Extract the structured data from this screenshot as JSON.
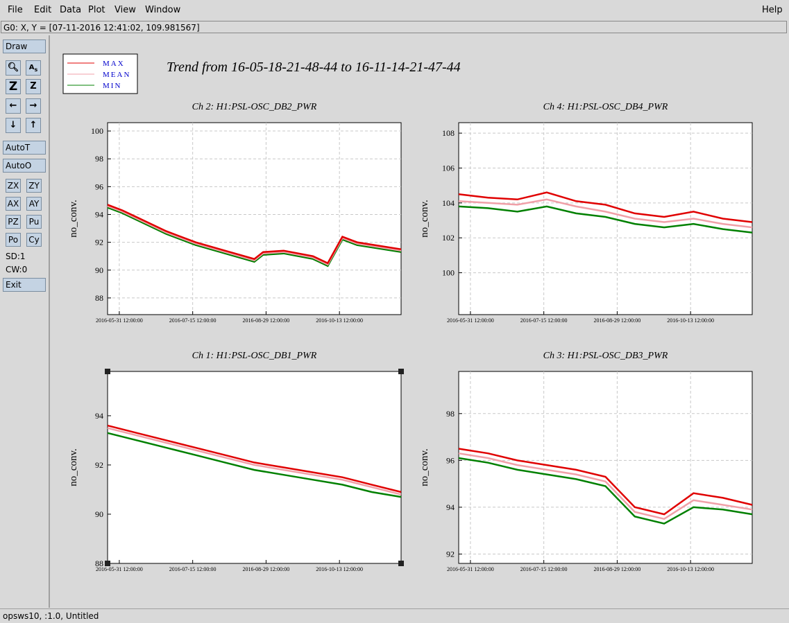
{
  "menu": {
    "file": "File",
    "edit": "Edit",
    "data": "Data",
    "plot": "Plot",
    "view": "View",
    "window": "Window",
    "help": "Help"
  },
  "coord_readout": "G0: X, Y = [07-11-2016 12:41:02, 109.981567]",
  "toolbar": {
    "draw": "Draw",
    "autot": "AutoT",
    "autoo": "AutoO",
    "zx": "ZX",
    "zy": "ZY",
    "ax": "AX",
    "ay": "AY",
    "pz": "PZ",
    "pu": "Pu",
    "po": "Po",
    "cy": "Cy",
    "sd": "SD:1",
    "cw": "CW:0",
    "exit": "Exit",
    "icons": [
      "magnify-icon",
      "text-a-icon",
      "zoom-z-bold-icon",
      "zoom-z-icon",
      "arrow-left-icon",
      "arrow-right-icon",
      "arrow-down-icon",
      "arrow-up-icon"
    ]
  },
  "status": "opsws10, :1.0, Untitled",
  "legend": [
    {
      "label": "MAX",
      "color": "#e00000"
    },
    {
      "label": "MEAN",
      "color": "#f0a0a8"
    },
    {
      "label": "MIN",
      "color": "#008000"
    }
  ],
  "main_title": "Trend from 16-05-18-21-48-44 to 16-11-14-21-47-44",
  "chart_data": [
    {
      "type": "line",
      "title": "Ch 2: H1:PSL-OSC_DB2_PWR",
      "ylabel": "no_conv.",
      "x_ticks": [
        "2016-05-31 12:00:00",
        "2016-07-15 12:00:00",
        "2016-08-29 12:00:00",
        "2016-10-13 12:00:00"
      ],
      "y_ticks": [
        88,
        90,
        92,
        94,
        96,
        98,
        100
      ],
      "ylim": [
        86.8,
        100.6
      ],
      "grid": true,
      "series": [
        {
          "name": "MAX",
          "x": [
            0,
            0.05,
            0.1,
            0.2,
            0.3,
            0.4,
            0.5,
            0.53,
            0.6,
            0.7,
            0.75,
            0.8,
            0.85,
            1
          ],
          "values": [
            94.7,
            94.3,
            93.8,
            92.8,
            92.0,
            91.4,
            90.8,
            91.3,
            91.4,
            91.0,
            90.5,
            92.4,
            92.0,
            91.5
          ]
        },
        {
          "name": "MEAN",
          "x": [
            0,
            0.05,
            0.1,
            0.2,
            0.3,
            0.4,
            0.5,
            0.53,
            0.6,
            0.7,
            0.75,
            0.8,
            0.85,
            1
          ],
          "values": [
            94.6,
            94.2,
            93.7,
            92.7,
            91.9,
            91.3,
            90.7,
            91.2,
            91.3,
            90.9,
            90.4,
            92.3,
            91.9,
            91.4
          ]
        },
        {
          "name": "MIN",
          "x": [
            0,
            0.05,
            0.1,
            0.2,
            0.3,
            0.4,
            0.5,
            0.53,
            0.6,
            0.7,
            0.75,
            0.8,
            0.85,
            1
          ],
          "values": [
            94.5,
            94.1,
            93.6,
            92.6,
            91.8,
            91.2,
            90.6,
            91.1,
            91.2,
            90.8,
            90.3,
            92.2,
            91.8,
            91.3
          ]
        }
      ]
    },
    {
      "type": "line",
      "title": "Ch 4: H1:PSL-OSC_DB4_PWR",
      "ylabel": "no_conv.",
      "x_ticks": [
        "2016-05-31 12:00:00",
        "2016-07-15 12:00:00",
        "2016-08-29 12:00:00",
        "2016-10-13 12:00:00"
      ],
      "y_ticks": [
        100,
        102,
        104,
        106,
        108
      ],
      "ylim": [
        97.6,
        108.6
      ],
      "grid": true,
      "series": [
        {
          "name": "MAX",
          "x": [
            0,
            0.1,
            0.2,
            0.3,
            0.4,
            0.5,
            0.6,
            0.7,
            0.8,
            0.9,
            1
          ],
          "values": [
            104.5,
            104.3,
            104.2,
            104.6,
            104.1,
            103.9,
            103.4,
            103.2,
            103.5,
            103.1,
            102.9
          ]
        },
        {
          "name": "MEAN",
          "x": [
            0,
            0.1,
            0.2,
            0.3,
            0.4,
            0.5,
            0.6,
            0.7,
            0.8,
            0.9,
            1
          ],
          "values": [
            104.1,
            104.0,
            103.9,
            104.2,
            103.8,
            103.5,
            103.1,
            102.9,
            103.1,
            102.8,
            102.6
          ]
        },
        {
          "name": "MIN",
          "x": [
            0,
            0.1,
            0.2,
            0.3,
            0.4,
            0.5,
            0.6,
            0.7,
            0.8,
            0.9,
            1
          ],
          "values": [
            103.8,
            103.7,
            103.5,
            103.8,
            103.4,
            103.2,
            102.8,
            102.6,
            102.8,
            102.5,
            102.3
          ]
        }
      ]
    },
    {
      "type": "line",
      "title": "Ch 1: H1:PSL-OSC_DB1_PWR",
      "ylabel": "no_conv.",
      "x_ticks": [
        "2016-05-31 12:00:00",
        "2016-07-15 12:00:00",
        "2016-08-29 12:00:00",
        "2016-10-13 12:00:00"
      ],
      "y_ticks": [
        88,
        90,
        92,
        94
      ],
      "ylim": [
        88,
        95.8
      ],
      "grid": false,
      "series": [
        {
          "name": "MAX",
          "x": [
            0,
            0.1,
            0.2,
            0.3,
            0.4,
            0.5,
            0.6,
            0.7,
            0.8,
            0.9,
            1
          ],
          "values": [
            93.6,
            93.3,
            93.0,
            92.7,
            92.4,
            92.1,
            91.9,
            91.7,
            91.5,
            91.2,
            90.9
          ]
        },
        {
          "name": "MEAN",
          "x": [
            0,
            0.1,
            0.2,
            0.3,
            0.4,
            0.5,
            0.6,
            0.7,
            0.8,
            0.9,
            1
          ],
          "values": [
            93.5,
            93.2,
            92.9,
            92.6,
            92.3,
            92.0,
            91.8,
            91.6,
            91.4,
            91.1,
            90.8
          ]
        },
        {
          "name": "MIN",
          "x": [
            0,
            0.1,
            0.2,
            0.3,
            0.4,
            0.5,
            0.6,
            0.7,
            0.8,
            0.9,
            1
          ],
          "values": [
            93.3,
            93.0,
            92.7,
            92.4,
            92.1,
            91.8,
            91.6,
            91.4,
            91.2,
            90.9,
            90.7
          ]
        }
      ]
    },
    {
      "type": "line",
      "title": "Ch 3: H1:PSL-OSC_DB3_PWR",
      "ylabel": "no_conv.",
      "x_ticks": [
        "2016-05-31 12:00:00",
        "2016-07-15 12:00:00",
        "2016-08-29 12:00:00",
        "2016-10-13 12:00:00"
      ],
      "y_ticks": [
        92,
        94,
        96,
        98
      ],
      "ylim": [
        91.6,
        99.8
      ],
      "grid": true,
      "series": [
        {
          "name": "MAX",
          "x": [
            0,
            0.1,
            0.2,
            0.3,
            0.4,
            0.5,
            0.6,
            0.7,
            0.8,
            0.9,
            1
          ],
          "values": [
            96.5,
            96.3,
            96.0,
            95.8,
            95.6,
            95.3,
            94.0,
            93.7,
            94.6,
            94.4,
            94.1
          ]
        },
        {
          "name": "MEAN",
          "x": [
            0,
            0.1,
            0.2,
            0.3,
            0.4,
            0.5,
            0.6,
            0.7,
            0.8,
            0.9,
            1
          ],
          "values": [
            96.3,
            96.1,
            95.8,
            95.6,
            95.4,
            95.1,
            93.8,
            93.5,
            94.3,
            94.1,
            93.9
          ]
        },
        {
          "name": "MIN",
          "x": [
            0,
            0.1,
            0.2,
            0.3,
            0.4,
            0.5,
            0.6,
            0.7,
            0.8,
            0.9,
            1
          ],
          "values": [
            96.1,
            95.9,
            95.6,
            95.4,
            95.2,
            94.9,
            93.6,
            93.3,
            94.0,
            93.9,
            93.7
          ]
        }
      ]
    }
  ]
}
